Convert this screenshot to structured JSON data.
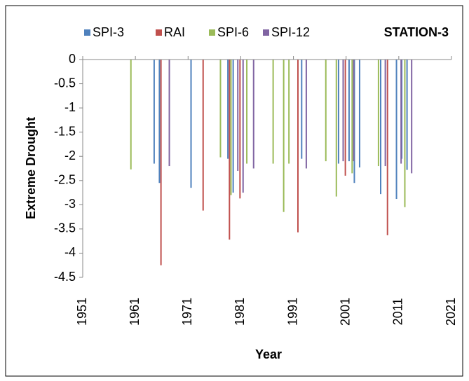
{
  "chart_data": {
    "type": "bar",
    "title": "STATION-3",
    "x_label": "Year",
    "y_label": "Extreme Drought",
    "legend": "top",
    "xlim": [
      1951,
      2021
    ],
    "xticks": [
      1951,
      1961,
      1971,
      1981,
      1991,
      2001,
      2011,
      2021
    ],
    "ylim": [
      -4.5,
      0
    ],
    "yticks": [
      0,
      -0.5,
      -1,
      -1.5,
      -2,
      -2.5,
      -3,
      -3.5,
      -4,
      -4.5
    ],
    "series": [
      {
        "name": "SPI-3",
        "color": "#4f81bd",
        "x": [
          1965,
          1966,
          1972,
          1979,
          1980,
          1993,
          2000,
          2002,
          2003,
          2004,
          2008,
          2011,
          2012,
          2013
        ],
        "values": [
          -2.15,
          -2.55,
          -2.65,
          -2.05,
          -2.75,
          -2.05,
          -2.15,
          -2.1,
          -2.55,
          -2.23,
          -2.78,
          -2.88,
          -2.05,
          -2.28
        ]
      },
      {
        "name": "RAI",
        "color": "#c0504d",
        "x": [
          1966,
          1974,
          1979,
          1981,
          1992,
          2001,
          2009
        ],
        "values": [
          -4.25,
          -3.12,
          -3.72,
          -2.87,
          -3.57,
          -2.4,
          -3.63
        ]
      },
      {
        "name": "SPI-6",
        "color": "#9bbb59",
        "x": [
          1960,
          1977,
          1979,
          1982,
          1987,
          1989,
          1990,
          1997,
          1999,
          2002,
          2007,
          2012
        ],
        "values": [
          -2.27,
          -2.02,
          -2.8,
          -2.15,
          -2.15,
          -3.15,
          -2.15,
          -2.1,
          -2.83,
          -2.35,
          -2.2,
          -3.05
        ]
      },
      {
        "name": "SPI-12",
        "color": "#8064a2",
        "x": [
          1967,
          1980,
          1981,
          1983,
          1993,
          2000,
          2002,
          2008,
          2011,
          2013
        ],
        "values": [
          -2.2,
          -2.3,
          -2.75,
          -2.25,
          -2.25,
          -2.1,
          -2.1,
          -2.2,
          -2.15,
          -2.35
        ]
      }
    ]
  }
}
